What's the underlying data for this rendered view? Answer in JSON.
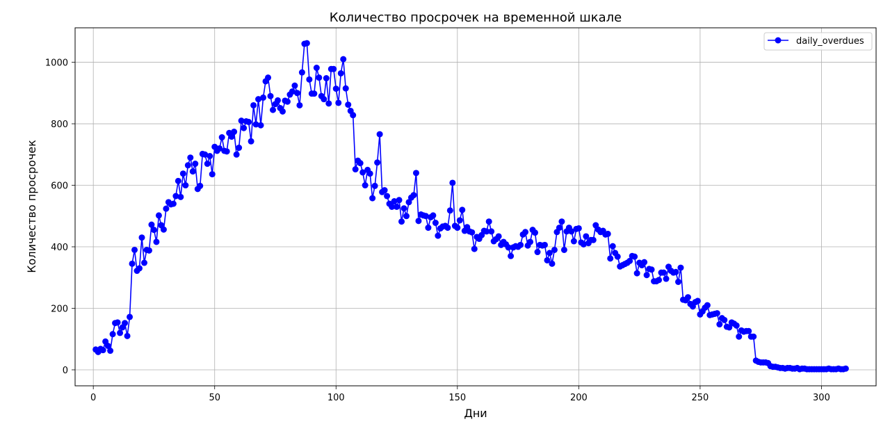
{
  "chart_data": {
    "type": "line",
    "title": "Количество просрочек на временной шкале",
    "xlabel": "Дни",
    "ylabel": "Количество просрочек",
    "xlim": [
      -7.5,
      322.5
    ],
    "ylim": [
      -52,
      1112
    ],
    "xticks": [
      0,
      50,
      100,
      150,
      200,
      250,
      300
    ],
    "yticks": [
      0,
      200,
      400,
      600,
      800,
      1000
    ],
    "grid": true,
    "legend_position": "top-right",
    "color": "#0000ff",
    "marker": "circle",
    "series": [
      {
        "name": "daily_overdues",
        "x_start": 1,
        "x_step": 1,
        "values": [
          66,
          58,
          68,
          64,
          92,
          78,
          62,
          116,
          152,
          154,
          120,
          138,
          152,
          110,
          172,
          345,
          390,
          322,
          330,
          430,
          348,
          390,
          388,
          472,
          455,
          416,
          502,
          470,
          456,
          524,
          545,
          538,
          540,
          565,
          614,
          562,
          638,
          600,
          665,
          690,
          645,
          670,
          588,
          598,
          702,
          700,
          670,
          695,
          636,
          725,
          712,
          720,
          756,
          712,
          710,
          770,
          758,
          774,
          700,
          722,
          810,
          786,
          808,
          806,
          743,
          860,
          798,
          880,
          795,
          885,
          938,
          950,
          890,
          845,
          864,
          876,
          851,
          840,
          875,
          872,
          895,
          905,
          924,
          900,
          860,
          967,
          1060,
          1062,
          944,
          898,
          898,
          982,
          950,
          890,
          880,
          948,
          866,
          978,
          978,
          914,
          868,
          964,
          1010,
          915,
          862,
          842,
          828,
          652,
          680,
          672,
          642,
          600,
          650,
          638,
          558,
          598,
          674,
          766,
          578,
          584,
          565,
          540,
          530,
          548,
          530,
          552,
          482,
          525,
          500,
          545,
          560,
          568,
          640,
          484,
          505,
          502,
          500,
          462,
          496,
          502,
          478,
          436,
          460,
          466,
          468,
          462,
          518,
          608,
          468,
          462,
          486,
          520,
          452,
          464,
          450,
          447,
          393,
          432,
          426,
          438,
          452,
          450,
          482,
          450,
          418,
          425,
          434,
          406,
          416,
          408,
          398,
          370,
          398,
          402,
          400,
          406,
          440,
          448,
          404,
          416,
          455,
          446,
          383,
          406,
          404,
          406,
          356,
          380,
          345,
          390,
          448,
          462,
          482,
          390,
          450,
          462,
          450,
          418,
          458,
          460,
          414,
          408,
          434,
          412,
          422,
          422,
          470,
          456,
          448,
          452,
          440,
          442,
          362,
          402,
          380,
          368,
          336,
          340,
          344,
          348,
          354,
          370,
          368,
          314,
          348,
          340,
          350,
          308,
          328,
          326,
          288,
          288,
          292,
          316,
          316,
          296,
          335,
          322,
          316,
          318,
          286,
          332,
          228,
          226,
          236,
          214,
          206,
          220,
          224,
          180,
          190,
          202,
          210,
          178,
          180,
          182,
          184,
          148,
          168,
          162,
          140,
          138,
          154,
          150,
          144,
          108,
          128,
          124,
          126,
          126,
          108,
          108,
          30,
          26,
          24,
          24,
          24,
          22,
          12,
          10,
          10,
          8,
          6,
          6,
          4,
          6,
          6,
          4,
          4,
          6,
          2,
          4,
          4,
          2,
          2,
          2,
          2,
          2,
          2,
          2,
          2,
          2,
          4,
          2,
          2,
          2,
          4,
          2,
          2,
          4
        ]
      }
    ]
  }
}
